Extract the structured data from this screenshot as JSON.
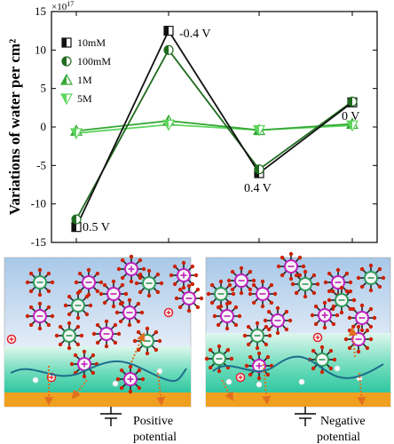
{
  "chart_data": {
    "type": "line",
    "categories": [
      "0.5 V",
      "-0.4 V",
      "0.4 V",
      "0 V"
    ],
    "x": [
      1,
      2,
      3,
      4
    ],
    "series": [
      {
        "name": "10mM",
        "values": [
          -13,
          12.5,
          -6,
          3.2
        ],
        "color": "#111111",
        "marker": "square-half"
      },
      {
        "name": "100mM",
        "values": [
          -12,
          10,
          -5.5,
          3.3
        ],
        "color": "#1f6b1f",
        "marker": "circle-half"
      },
      {
        "name": "1M",
        "values": [
          -0.5,
          0.8,
          -0.4,
          0.4
        ],
        "color": "#35a835",
        "marker": "triangle-up-half"
      },
      {
        "name": "5M",
        "values": [
          -0.8,
          0.3,
          -0.4,
          0.2
        ],
        "color": "#5fd55f",
        "marker": "triangle-down-half"
      }
    ],
    "ylabel": "Variations of water per cm²",
    "exponent_label": "×10",
    "exponent_sup": "17",
    "ylim": [
      -15,
      15
    ],
    "yticks": [
      "-15",
      "-10",
      "-5",
      "0",
      "5",
      "10",
      "15"
    ],
    "ytick_values": [
      -15,
      -10,
      -5,
      0,
      5,
      10,
      15
    ],
    "point_labels": [
      "0.5 V",
      "-0.4 V",
      "0.4 V",
      "0 V"
    ],
    "grid": false,
    "legend_position": "top-left"
  },
  "panels": [
    {
      "caption_line1": "Positive",
      "caption_line2": "potential"
    },
    {
      "caption_line1": "Negative",
      "caption_line2": "potential"
    }
  ],
  "colors": {
    "sky_top": "#a8c8e8",
    "sky_bottom": "#f3f6fb",
    "water_layer": "#5cd6b8",
    "electrode": "#f0a020",
    "wave": "#1d6e8c",
    "water_molecule_core": "#d0d0d0",
    "anion_core": "#c020c0",
    "cation_core": "#2e9e5a",
    "free_cation": "#e0202a",
    "arrow_dotted": "#e07020"
  }
}
